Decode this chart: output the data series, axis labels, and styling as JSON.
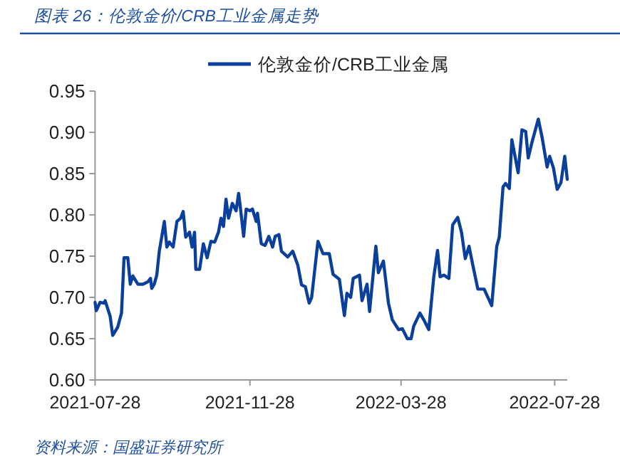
{
  "chart_data": {
    "type": "line",
    "title": "图表 26：伦敦金价/CRB工业金属走势",
    "annotations": [
      "资料来源：国盛证券研究所"
    ],
    "legend": "top",
    "grid": false,
    "xlim": [
      "2021-07-28",
      "2022-08-07"
    ],
    "xticks": [
      "2021-07-28",
      "2021-11-28",
      "2022-03-28",
      "2022-07-28"
    ],
    "ylim": [
      0.6,
      0.95
    ],
    "yticks": [
      {
        "value": 0.6,
        "label": "0.60"
      },
      {
        "value": 0.65,
        "label": "0.65"
      },
      {
        "value": 0.7,
        "label": "0.70"
      },
      {
        "value": 0.75,
        "label": "0.75"
      },
      {
        "value": 0.8,
        "label": "0.80"
      },
      {
        "value": 0.85,
        "label": "0.85"
      },
      {
        "value": 0.9,
        "label": "0.90"
      },
      {
        "value": 0.95,
        "label": "0.95"
      }
    ],
    "x": [
      "2021-07-28",
      "2021-07-29",
      "2021-08-01",
      "2021-08-04",
      "2021-08-05",
      "2021-08-09",
      "2021-08-11",
      "2021-08-15",
      "2021-08-18",
      "2021-08-20",
      "2021-08-23",
      "2021-08-25",
      "2021-08-27",
      "2021-08-31",
      "2021-09-04",
      "2021-09-08",
      "2021-09-10",
      "2021-09-11",
      "2021-09-13",
      "2021-09-15",
      "2021-09-17",
      "2021-09-21",
      "2021-09-23",
      "2021-09-25",
      "2021-09-28",
      "2021-10-01",
      "2021-10-04",
      "2021-10-06",
      "2021-10-08",
      "2021-10-11",
      "2021-10-13",
      "2021-10-15",
      "2021-10-16",
      "2021-10-19",
      "2021-10-22",
      "2021-10-25",
      "2021-10-28",
      "2021-10-31",
      "2021-11-03",
      "2021-11-05",
      "2021-11-07",
      "2021-11-09",
      "2021-11-11",
      "2021-11-14",
      "2021-11-17",
      "2021-11-19",
      "2021-11-20",
      "2021-11-23",
      "2021-11-25",
      "2021-11-28",
      "2021-11-30",
      "2021-12-03",
      "2021-12-04",
      "2021-12-07",
      "2021-12-10",
      "2021-12-13",
      "2021-12-16",
      "2021-12-18",
      "2021-12-21",
      "2021-12-23",
      "2021-12-28",
      "2022-01-01",
      "2022-01-05",
      "2022-01-08",
      "2022-01-11",
      "2022-01-14",
      "2022-01-16",
      "2022-01-21",
      "2022-01-25",
      "2022-01-30",
      "2022-02-02",
      "2022-02-07",
      "2022-02-11",
      "2022-02-13",
      "2022-02-16",
      "2022-02-18",
      "2022-02-23",
      "2022-02-25",
      "2022-03-01",
      "2022-03-03",
      "2022-03-08",
      "2022-03-10",
      "2022-03-14",
      "2022-03-18",
      "2022-03-21",
      "2022-03-26",
      "2022-03-29",
      "2022-04-02",
      "2022-04-05",
      "2022-04-07",
      "2022-04-12",
      "2022-04-15",
      "2022-04-19",
      "2022-04-23",
      "2022-04-26",
      "2022-04-28",
      "2022-05-01",
      "2022-05-05",
      "2022-05-08",
      "2022-05-12",
      "2022-05-15",
      "2022-05-18",
      "2022-05-21",
      "2022-05-24",
      "2022-05-28",
      "2022-06-02",
      "2022-06-08",
      "2022-06-12",
      "2022-06-14",
      "2022-06-17",
      "2022-06-19",
      "2022-06-22",
      "2022-06-24",
      "2022-06-29",
      "2022-07-02",
      "2022-07-05",
      "2022-07-07",
      "2022-07-10",
      "2022-07-15",
      "2022-07-18",
      "2022-07-22",
      "2022-07-24",
      "2022-07-27",
      "2022-07-30",
      "2022-08-02",
      "2022-08-05",
      "2022-08-07"
    ],
    "series": [
      {
        "name": "伦敦金价/CRB工业金属",
        "color": "#0b3f9c",
        "values": [
          0.694,
          0.684,
          0.694,
          0.693,
          0.696,
          0.677,
          0.654,
          0.664,
          0.681,
          0.748,
          0.748,
          0.716,
          0.726,
          0.716,
          0.716,
          0.719,
          0.723,
          0.711,
          0.716,
          0.727,
          0.756,
          0.792,
          0.761,
          0.767,
          0.761,
          0.792,
          0.796,
          0.804,
          0.773,
          0.779,
          0.761,
          0.779,
          0.734,
          0.734,
          0.765,
          0.748,
          0.768,
          0.767,
          0.779,
          0.796,
          0.786,
          0.819,
          0.796,
          0.814,
          0.805,
          0.826,
          0.814,
          0.774,
          0.807,
          0.805,
          0.807,
          0.792,
          0.802,
          0.765,
          0.763,
          0.774,
          0.761,
          0.774,
          0.776,
          0.756,
          0.749,
          0.756,
          0.739,
          0.715,
          0.713,
          0.693,
          0.7,
          0.768,
          0.753,
          0.753,
          0.728,
          0.722,
          0.678,
          0.705,
          0.7,
          0.723,
          0.727,
          0.696,
          0.716,
          0.683,
          0.762,
          0.73,
          0.744,
          0.693,
          0.673,
          0.661,
          0.662,
          0.65,
          0.65,
          0.665,
          0.681,
          0.673,
          0.661,
          0.725,
          0.757,
          0.725,
          0.727,
          0.723,
          0.788,
          0.797,
          0.779,
          0.747,
          0.762,
          0.739,
          0.71,
          0.71,
          0.69,
          0.762,
          0.773,
          0.834,
          0.838,
          0.832,
          0.891,
          0.851,
          0.903,
          0.901,
          0.869,
          0.888,
          0.916,
          0.894,
          0.858,
          0.871,
          0.857,
          0.831,
          0.839,
          0.871,
          0.843
        ]
      }
    ]
  }
}
